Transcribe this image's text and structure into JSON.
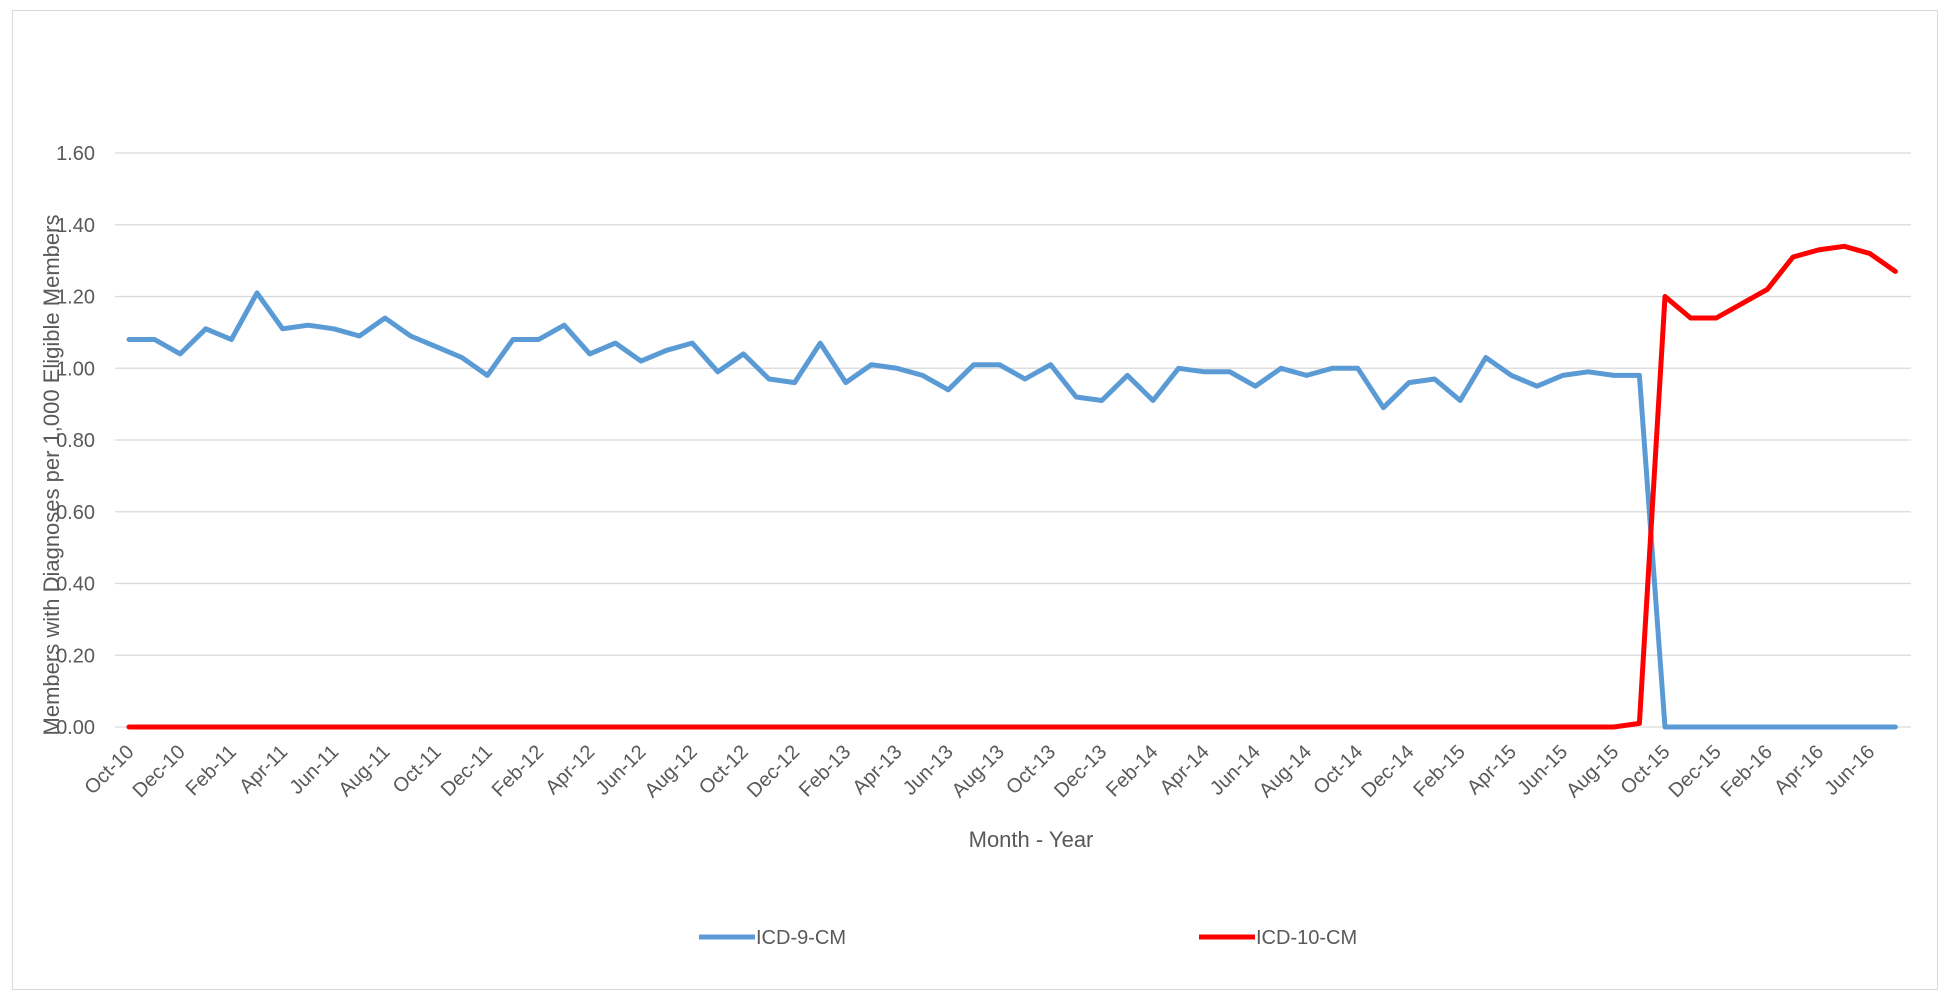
{
  "chart_data": {
    "type": "line",
    "title": "",
    "xlabel": "Month - Year",
    "ylabel": "Members with  Diagnoses per 1,000 Eligible Members",
    "ylim": [
      0,
      1.6
    ],
    "yticks": [
      "0.00",
      "0.20",
      "0.40",
      "0.60",
      "0.80",
      "1.00",
      "1.20",
      "1.40",
      "1.60"
    ],
    "grid": true,
    "legend_position": "bottom",
    "categories": [
      "Oct-10",
      "Nov-10",
      "Dec-10",
      "Jan-11",
      "Feb-11",
      "Mar-11",
      "Apr-11",
      "May-11",
      "Jun-11",
      "Jul-11",
      "Aug-11",
      "Sep-11",
      "Oct-11",
      "Nov-11",
      "Dec-11",
      "Jan-12",
      "Feb-12",
      "Mar-12",
      "Apr-12",
      "May-12",
      "Jun-12",
      "Jul-12",
      "Aug-12",
      "Sep-12",
      "Oct-12",
      "Nov-12",
      "Dec-12",
      "Jan-13",
      "Feb-13",
      "Mar-13",
      "Apr-13",
      "May-13",
      "Jun-13",
      "Jul-13",
      "Aug-13",
      "Sep-13",
      "Oct-13",
      "Nov-13",
      "Dec-13",
      "Jan-14",
      "Feb-14",
      "Mar-14",
      "Apr-14",
      "May-14",
      "Jun-14",
      "Jul-14",
      "Aug-14",
      "Sep-14",
      "Oct-14",
      "Nov-14",
      "Dec-14",
      "Jan-15",
      "Feb-15",
      "Mar-15",
      "Apr-15",
      "May-15",
      "Jun-15",
      "Jul-15",
      "Aug-15",
      "Sep-15",
      "Oct-15",
      "Nov-15",
      "Dec-15",
      "Jan-16",
      "Feb-16",
      "Mar-16",
      "Apr-16",
      "May-16",
      "Jun-16",
      "Jul-16"
    ],
    "visible_tick_labels": [
      "Oct-10",
      "Dec-10",
      "Feb-11",
      "Apr-11",
      "Jun-11",
      "Aug-11",
      "Oct-11",
      "Dec-11",
      "Feb-12",
      "Apr-12",
      "Jun-12",
      "Aug-12",
      "Oct-12",
      "Dec-12",
      "Feb-13",
      "Apr-13",
      "Jun-13",
      "Aug-13",
      "Oct-13",
      "Dec-13",
      "Feb-14",
      "Apr-14",
      "Jun-14",
      "Aug-14",
      "Oct-14",
      "Dec-14",
      "Feb-15",
      "Apr-15",
      "Jun-15",
      "Aug-15",
      "Oct-15",
      "Dec-15",
      "Feb-16",
      "Apr-16",
      "Jun-16"
    ],
    "series": [
      {
        "name": "ICD-9-CM",
        "color": "#5b9bd5",
        "values": [
          1.08,
          1.08,
          1.04,
          1.11,
          1.08,
          1.21,
          1.11,
          1.12,
          1.11,
          1.09,
          1.14,
          1.09,
          1.06,
          1.03,
          0.98,
          1.08,
          1.08,
          1.12,
          1.04,
          1.07,
          1.02,
          1.05,
          1.07,
          0.99,
          1.04,
          0.97,
          0.96,
          1.07,
          0.96,
          1.01,
          1.0,
          0.98,
          0.94,
          1.01,
          1.01,
          0.97,
          1.01,
          0.92,
          0.91,
          0.98,
          0.91,
          1.0,
          0.99,
          0.99,
          0.95,
          1.0,
          0.98,
          1.0,
          1.0,
          0.89,
          0.96,
          0.97,
          0.91,
          1.03,
          0.98,
          0.95,
          0.98,
          0.99,
          0.98,
          0.98,
          0.0,
          0.0,
          0.0,
          0.0,
          0.0,
          0.0,
          0.0,
          0.0,
          0.0,
          0.0
        ]
      },
      {
        "name": "ICD-10-CM",
        "color": "#ff0000",
        "values": [
          0.0,
          0.0,
          0.0,
          0.0,
          0.0,
          0.0,
          0.0,
          0.0,
          0.0,
          0.0,
          0.0,
          0.0,
          0.0,
          0.0,
          0.0,
          0.0,
          0.0,
          0.0,
          0.0,
          0.0,
          0.0,
          0.0,
          0.0,
          0.0,
          0.0,
          0.0,
          0.0,
          0.0,
          0.0,
          0.0,
          0.0,
          0.0,
          0.0,
          0.0,
          0.0,
          0.0,
          0.0,
          0.0,
          0.0,
          0.0,
          0.0,
          0.0,
          0.0,
          0.0,
          0.0,
          0.0,
          0.0,
          0.0,
          0.0,
          0.0,
          0.0,
          0.0,
          0.0,
          0.0,
          0.0,
          0.0,
          0.0,
          0.0,
          0.0,
          0.01,
          1.2,
          1.14,
          1.14,
          1.18,
          1.22,
          1.31,
          1.33,
          1.34,
          1.32,
          1.27
        ]
      }
    ]
  },
  "colors": {
    "gridline": "#d9d9d9",
    "text": "#595959",
    "frame": "#d9d9d9"
  }
}
